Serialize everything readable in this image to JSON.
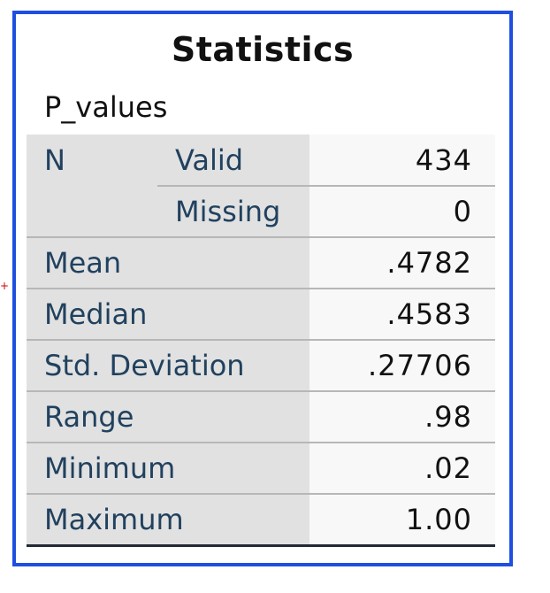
{
  "table": {
    "title": "Statistics",
    "variable": "P_values",
    "n_label": "N",
    "rows": [
      {
        "label": "Valid",
        "value": "434"
      },
      {
        "label": "Missing",
        "value": "0"
      },
      {
        "label": "Mean",
        "value": ".4782"
      },
      {
        "label": "Median",
        "value": ".4583"
      },
      {
        "label": "Std. Deviation",
        "value": ".27706"
      },
      {
        "label": "Range",
        "value": ".98"
      },
      {
        "label": "Minimum",
        "value": ".02"
      },
      {
        "label": "Maximum",
        "value": "1.00"
      }
    ]
  },
  "colors": {
    "frame_border": "#1f4fe0",
    "label_text": "#21415e",
    "row_header_bg": "#e1e1e1"
  }
}
